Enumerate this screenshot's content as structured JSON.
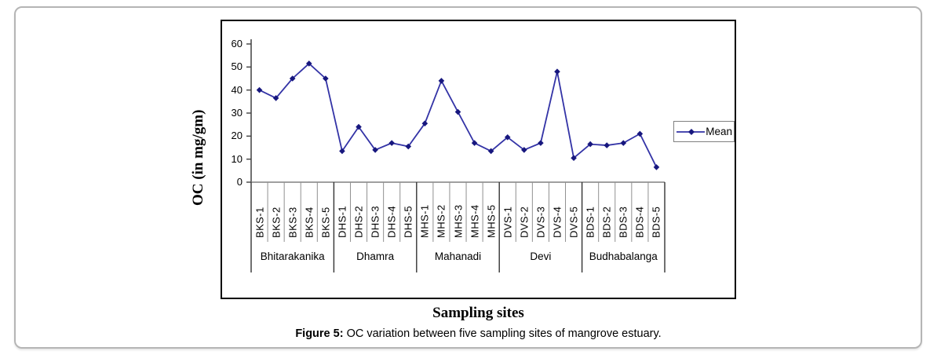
{
  "chart_data": {
    "type": "line",
    "title": "",
    "xlabel": "Sampling sites",
    "ylabel": "OC (in mg/gm)",
    "ylim": [
      0,
      60
    ],
    "yticks": [
      0,
      10,
      20,
      30,
      40,
      50,
      60
    ],
    "grid": false,
    "legend": {
      "label": "Mean",
      "position": "right"
    },
    "categories": [
      "BKS-1",
      "BKS-2",
      "BKS-3",
      "BKS-4",
      "BKS-5",
      "DHS-1",
      "DHS-2",
      "DHS-3",
      "DHS-4",
      "DHS-5",
      "MHS-1",
      "MHS-2",
      "MHS-3",
      "MHS-4",
      "MHS-5",
      "DVS-1",
      "DVS-2",
      "DVS-3",
      "DVS-4",
      "DVS-5",
      "BDS-1",
      "BDS-2",
      "BDS-3",
      "BDS-4",
      "BDS-5"
    ],
    "series": [
      {
        "name": "Mean",
        "values": [
          40,
          36.5,
          45,
          51.5,
          45,
          13.5,
          24,
          14,
          17,
          15.5,
          25.5,
          44,
          30.5,
          17,
          13.5,
          19.5,
          14,
          17,
          48,
          10.5,
          16.5,
          16,
          17,
          21,
          6.5
        ]
      }
    ],
    "groups": [
      {
        "label": "Bhitarakanika",
        "span": 5
      },
      {
        "label": "Dhamra",
        "span": 5
      },
      {
        "label": "Mahanadi",
        "span": 5
      },
      {
        "label": "Devi",
        "span": 5
      },
      {
        "label": "Budhabalanga",
        "span": 5
      }
    ],
    "colors": {
      "line": "#3333A6",
      "marker": "#17177E",
      "axis": "#404040",
      "separator": "#909090"
    }
  },
  "caption": {
    "label": "Figure 5:",
    "text": " OC variation between five sampling sites of mangrove estuary."
  }
}
